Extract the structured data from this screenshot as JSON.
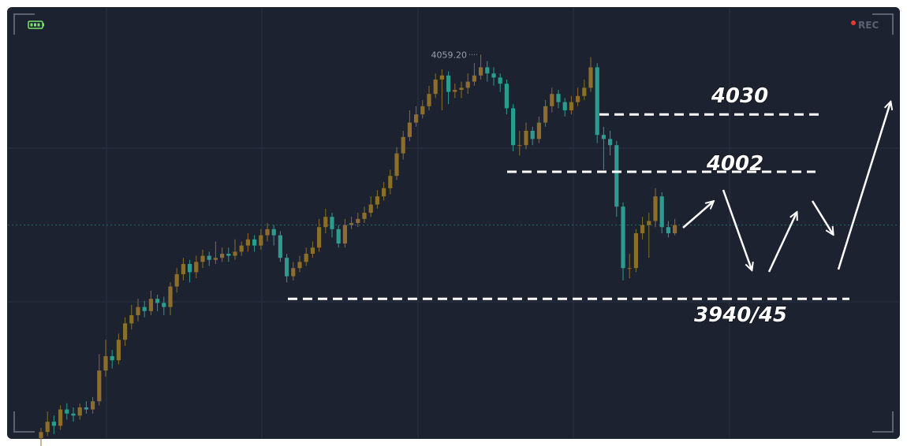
{
  "chart_data": {
    "type": "candlestick",
    "up_color": "#8c6d2a",
    "down_color": "#2a9d8f",
    "ylim": [
      3872,
      4082
    ],
    "grid": true,
    "series": {
      "open": [
        3872,
        3875,
        3880,
        3878,
        3886,
        3884,
        3883,
        3887,
        3886,
        3890,
        3905,
        3912,
        3910,
        3920,
        3928,
        3932,
        3936,
        3934,
        3940,
        3938,
        3936,
        3946,
        3952,
        3957,
        3953,
        3958,
        3961,
        3959,
        3960,
        3962,
        3961,
        3963,
        3966,
        3969,
        3966,
        3971,
        3974,
        3971,
        3960,
        3951,
        3955,
        3958,
        3962,
        3965,
        3975,
        3980,
        3974,
        3967,
        3976,
        3977,
        3979,
        3982,
        3986,
        3990,
        3994,
        4000,
        4011,
        4019,
        4026,
        4030,
        4034,
        4040,
        4047,
        4049,
        4041,
        4042,
        4043,
        4046,
        4049,
        4053,
        4050,
        4048,
        4045,
        4033,
        4015,
        4015,
        4022,
        4018,
        4026,
        4034,
        4040,
        4036,
        4032,
        4036,
        4039,
        4043,
        4053,
        4020,
        4018,
        4015,
        3985,
        3955,
        3955,
        3972,
        3976,
        3978,
        3990,
        3975,
        3972
      ],
      "high": [
        3877,
        3885,
        3883,
        3888,
        3889,
        3887,
        3889,
        3890,
        3892,
        3913,
        3920,
        3915,
        3923,
        3931,
        3937,
        3940,
        3939,
        3944,
        3942,
        3941,
        3948,
        3955,
        3960,
        3959,
        3961,
        3964,
        3963,
        3968,
        3965,
        3965,
        3969,
        3968,
        3972,
        3971,
        3974,
        3977,
        3976,
        3973,
        3962,
        3958,
        3961,
        3965,
        3968,
        3979,
        3984,
        3982,
        3976,
        3979,
        3980,
        3982,
        3985,
        3990,
        3993,
        3997,
        4003,
        4014,
        4022,
        4032,
        4034,
        4037,
        4044,
        4050,
        4052,
        4051,
        4045,
        4046,
        4050,
        4055,
        4059.2,
        4056,
        4053,
        4050,
        4047,
        4035,
        4022,
        4026,
        4024,
        4029,
        4037,
        4043,
        4042,
        4038,
        4039,
        4043,
        4047,
        4058,
        4055,
        4024,
        4022,
        4017,
        3987,
        3962,
        3974,
        3980,
        3982,
        3994,
        3992,
        3978,
        3979
      ],
      "low": [
        3868,
        3873,
        3874,
        3876,
        3881,
        3880,
        3881,
        3884,
        3884,
        3888,
        3902,
        3906,
        3908,
        3917,
        3925,
        3929,
        3931,
        3932,
        3934,
        3932,
        3932,
        3943,
        3949,
        3948,
        3950,
        3955,
        3956,
        3957,
        3958,
        3958,
        3959,
        3961,
        3963,
        3963,
        3964,
        3968,
        3966,
        3958,
        3948,
        3949,
        3953,
        3956,
        3960,
        3963,
        3972,
        3970,
        3965,
        3965,
        3974,
        3975,
        3977,
        3980,
        3984,
        3988,
        3991,
        3998,
        4008,
        4017,
        4024,
        4028,
        4032,
        4038,
        4032,
        4035,
        4038,
        4038,
        4040,
        4044,
        4047,
        4046,
        4044,
        4041,
        4030,
        4012,
        4010,
        4013,
        4015,
        4016,
        4024,
        4031,
        4033,
        4029,
        4030,
        4034,
        4037,
        4041,
        4016,
        4003,
        4010,
        3980,
        3949,
        3950,
        3953,
        3969,
        3960,
        3975,
        3972,
        3970,
        3971
      ],
      "close": [
        3875,
        3880,
        3878,
        3886,
        3884,
        3883,
        3887,
        3886,
        3890,
        3905,
        3912,
        3910,
        3920,
        3928,
        3932,
        3936,
        3934,
        3940,
        3938,
        3936,
        3946,
        3952,
        3957,
        3953,
        3958,
        3961,
        3959,
        3960,
        3962,
        3961,
        3963,
        3966,
        3969,
        3966,
        3971,
        3974,
        3971,
        3960,
        3951,
        3955,
        3958,
        3962,
        3965,
        3975,
        3980,
        3974,
        3967,
        3976,
        3977,
        3979,
        3982,
        3986,
        3990,
        3994,
        4000,
        4011,
        4019,
        4026,
        4030,
        4034,
        4040,
        4047,
        4049,
        4041,
        4042,
        4043,
        4046,
        4049,
        4053,
        4050,
        4048,
        4045,
        4033,
        4015,
        4015,
        4022,
        4018,
        4026,
        4034,
        4040,
        4036,
        4032,
        4036,
        4039,
        4043,
        4053,
        4020,
        4018,
        4015,
        3985,
        3955,
        3955,
        3972,
        3976,
        3978,
        3990,
        3975,
        3972,
        3976
      ]
    },
    "high_marker": {
      "text": "4059.20",
      "value": 4059.2
    },
    "levels": [
      {
        "value": 4030,
        "label": "4030"
      },
      {
        "value": 4002,
        "label": "4002"
      },
      {
        "value": 3940,
        "label": "3940/45"
      }
    ]
  },
  "overlay": {
    "recording": "REC"
  }
}
